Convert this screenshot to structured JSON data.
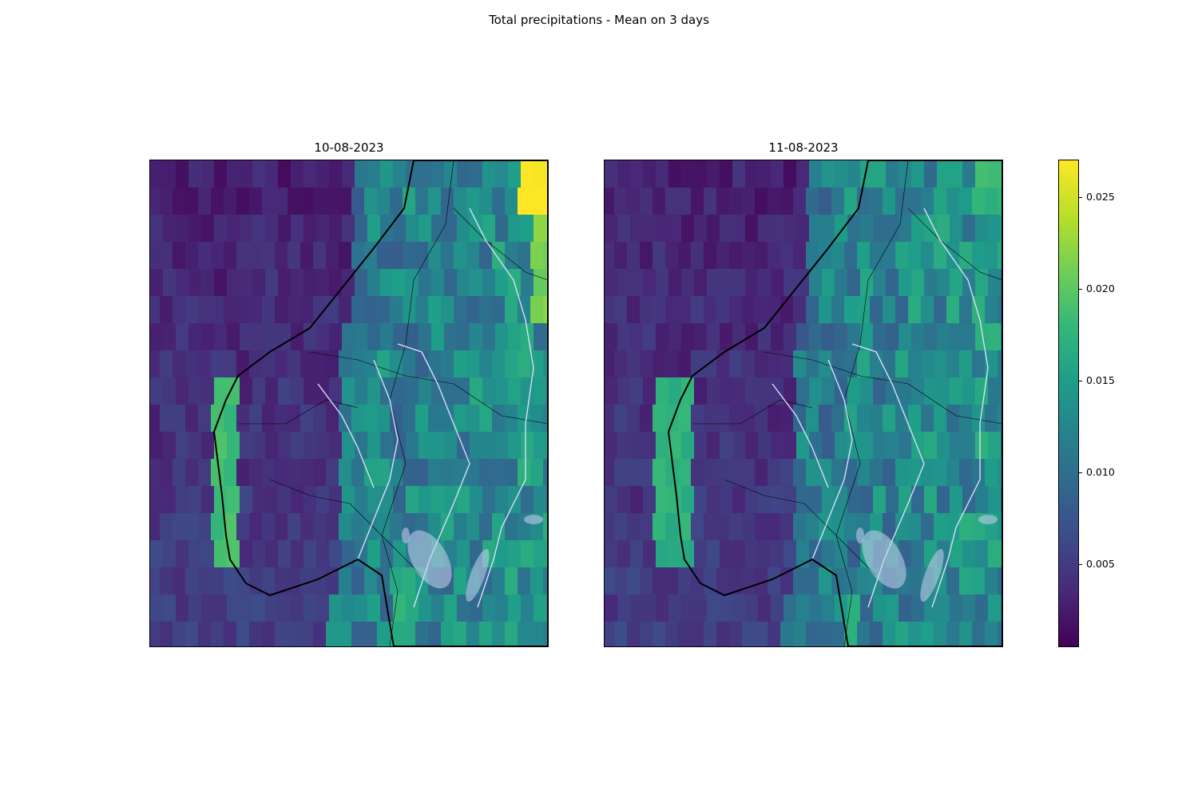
{
  "figure": {
    "title": "Total precipitations - Mean on 3 days"
  },
  "panels": [
    {
      "title": "10-08-2023"
    },
    {
      "title": "11-08-2023"
    }
  ],
  "colorbar": {
    "colormap": "viridis",
    "range": [
      0.0005,
      0.027
    ],
    "ticks": [
      {
        "value": 0.005,
        "label": "0.005"
      },
      {
        "value": 0.01,
        "label": "0.010"
      },
      {
        "value": 0.015,
        "label": "0.015"
      },
      {
        "value": 0.02,
        "label": "0.020"
      },
      {
        "value": 0.025,
        "label": "0.025"
      }
    ]
  },
  "colors": {
    "land_overlay_lakes": "#c8d2ee",
    "coastline": "#000000",
    "borders": "#000000",
    "rivers": "#d6defa"
  }
}
